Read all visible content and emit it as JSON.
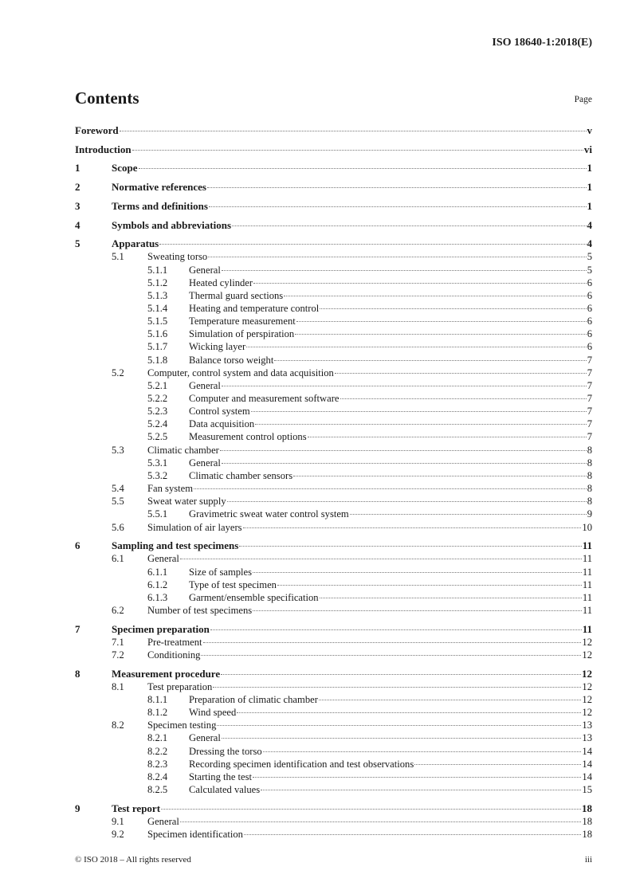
{
  "header": {
    "doc_id": "ISO 18640-1:2018(E)"
  },
  "title": "Contents",
  "page_label": "Page",
  "entries": [
    {
      "level": 0,
      "num": "",
      "title": "Foreword",
      "page": "v"
    },
    {
      "level": 0,
      "num": "",
      "title": "Introduction",
      "page": "vi"
    },
    {
      "level": 0,
      "num": "1",
      "title": "Scope",
      "page": "1"
    },
    {
      "level": 0,
      "num": "2",
      "title": "Normative references",
      "page": "1"
    },
    {
      "level": 0,
      "num": "3",
      "title": "Terms and definitions",
      "page": "1"
    },
    {
      "level": 0,
      "num": "4",
      "title": "Symbols and abbreviations",
      "page": "4"
    },
    {
      "level": 0,
      "num": "5",
      "title": "Apparatus",
      "page": "4"
    },
    {
      "level": 1,
      "num": "5.1",
      "title": "Sweating torso",
      "page": "5"
    },
    {
      "level": 2,
      "num": "5.1.1",
      "title": "General",
      "page": "5"
    },
    {
      "level": 2,
      "num": "5.1.2",
      "title": "Heated cylinder",
      "page": "6"
    },
    {
      "level": 2,
      "num": "5.1.3",
      "title": "Thermal guard sections",
      "page": "6"
    },
    {
      "level": 2,
      "num": "5.1.4",
      "title": "Heating and temperature control",
      "page": "6"
    },
    {
      "level": 2,
      "num": "5.1.5",
      "title": "Temperature measurement",
      "page": "6"
    },
    {
      "level": 2,
      "num": "5.1.6",
      "title": "Simulation of perspiration",
      "page": "6"
    },
    {
      "level": 2,
      "num": "5.1.7",
      "title": "Wicking layer",
      "page": "6"
    },
    {
      "level": 2,
      "num": "5.1.8",
      "title": "Balance torso weight",
      "page": "7"
    },
    {
      "level": 1,
      "num": "5.2",
      "title": "Computer, control system and data acquisition",
      "page": "7"
    },
    {
      "level": 2,
      "num": "5.2.1",
      "title": "General",
      "page": "7"
    },
    {
      "level": 2,
      "num": "5.2.2",
      "title": "Computer and measurement software",
      "page": "7"
    },
    {
      "level": 2,
      "num": "5.2.3",
      "title": "Control system",
      "page": "7"
    },
    {
      "level": 2,
      "num": "5.2.4",
      "title": "Data acquisition",
      "page": "7"
    },
    {
      "level": 2,
      "num": "5.2.5",
      "title": "Measurement control options",
      "page": "7"
    },
    {
      "level": 1,
      "num": "5.3",
      "title": "Climatic chamber",
      "page": "8"
    },
    {
      "level": 2,
      "num": "5.3.1",
      "title": "General",
      "page": "8"
    },
    {
      "level": 2,
      "num": "5.3.2",
      "title": "Climatic chamber sensors",
      "page": "8"
    },
    {
      "level": 1,
      "num": "5.4",
      "title": "Fan system",
      "page": "8"
    },
    {
      "level": 1,
      "num": "5.5",
      "title": "Sweat water supply",
      "page": "8"
    },
    {
      "level": 2,
      "num": "5.5.1",
      "title": "Gravimetric sweat water control system",
      "page": "9"
    },
    {
      "level": 1,
      "num": "5.6",
      "title": "Simulation of air layers",
      "page": "10"
    },
    {
      "level": 0,
      "num": "6",
      "title": "Sampling and test specimens",
      "page": "11"
    },
    {
      "level": 1,
      "num": "6.1",
      "title": "General",
      "page": "11"
    },
    {
      "level": 2,
      "num": "6.1.1",
      "title": "Size of samples",
      "page": "11"
    },
    {
      "level": 2,
      "num": "6.1.2",
      "title": "Type of test specimen",
      "page": "11"
    },
    {
      "level": 2,
      "num": "6.1.3",
      "title": "Garment/ensemble specification",
      "page": "11"
    },
    {
      "level": 1,
      "num": "6.2",
      "title": "Number of test specimens",
      "page": "11"
    },
    {
      "level": 0,
      "num": "7",
      "title": "Specimen preparation",
      "page": "11"
    },
    {
      "level": 1,
      "num": "7.1",
      "title": "Pre-treatment",
      "page": "12"
    },
    {
      "level": 1,
      "num": "7.2",
      "title": "Conditioning",
      "page": "12"
    },
    {
      "level": 0,
      "num": "8",
      "title": "Measurement procedure",
      "page": "12"
    },
    {
      "level": 1,
      "num": "8.1",
      "title": "Test preparation",
      "page": "12"
    },
    {
      "level": 2,
      "num": "8.1.1",
      "title": "Preparation of climatic chamber",
      "page": "12"
    },
    {
      "level": 2,
      "num": "8.1.2",
      "title": "Wind speed",
      "page": "12"
    },
    {
      "level": 1,
      "num": "8.2",
      "title": "Specimen testing",
      "page": "13"
    },
    {
      "level": 2,
      "num": "8.2.1",
      "title": "General",
      "page": "13"
    },
    {
      "level": 2,
      "num": "8.2.2",
      "title": "Dressing the torso",
      "page": "14"
    },
    {
      "level": 2,
      "num": "8.2.3",
      "title": "Recording specimen identification and test observations",
      "page": "14"
    },
    {
      "level": 2,
      "num": "8.2.4",
      "title": "Starting the test",
      "page": "14"
    },
    {
      "level": 2,
      "num": "8.2.5",
      "title": "Calculated values",
      "page": "15"
    },
    {
      "level": 0,
      "num": "9",
      "title": "Test report",
      "page": "18"
    },
    {
      "level": 1,
      "num": "9.1",
      "title": "General",
      "page": "18"
    },
    {
      "level": 1,
      "num": "9.2",
      "title": "Specimen identification",
      "page": "18"
    }
  ],
  "footer": {
    "copyright": "© ISO 2018 – All rights reserved",
    "page_number": "iii"
  }
}
